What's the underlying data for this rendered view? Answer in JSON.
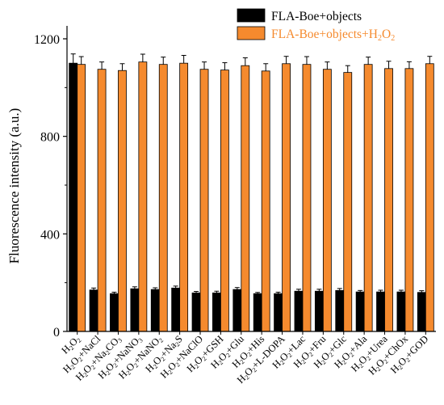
{
  "chart_data": {
    "type": "bar",
    "title": "",
    "ylabel": "Fluorescence intensity (a.u.)",
    "xlabel": "",
    "ylim": [
      0,
      1200
    ],
    "yticks": [
      0,
      400,
      800,
      1200
    ],
    "legend_position": "top-right",
    "grid": false,
    "categories": [
      {
        "text": "H2O2",
        "parts": [
          [
            "H",
            "n"
          ],
          [
            "2",
            "s"
          ],
          [
            "O",
            "n"
          ],
          [
            "2",
            "s"
          ]
        ]
      },
      {
        "text": "H2O2+NaCl",
        "parts": [
          [
            "H",
            "n"
          ],
          [
            "2",
            "s"
          ],
          [
            "O",
            "n"
          ],
          [
            "2",
            "s"
          ],
          [
            "+NaCl",
            "n"
          ]
        ]
      },
      {
        "text": "H2O2+Na2CO3",
        "parts": [
          [
            "H",
            "n"
          ],
          [
            "2",
            "s"
          ],
          [
            "O",
            "n"
          ],
          [
            "2",
            "s"
          ],
          [
            "+Na",
            "n"
          ],
          [
            "2",
            "s"
          ],
          [
            "CO",
            "n"
          ],
          [
            "3",
            "s"
          ]
        ]
      },
      {
        "text": "H2O2+NaNO3",
        "parts": [
          [
            "H",
            "n"
          ],
          [
            "2",
            "s"
          ],
          [
            "O",
            "n"
          ],
          [
            "2",
            "s"
          ],
          [
            "+NaNO",
            "n"
          ],
          [
            "3",
            "s"
          ]
        ]
      },
      {
        "text": "H2O2+NaNO2",
        "parts": [
          [
            "H",
            "n"
          ],
          [
            "2",
            "s"
          ],
          [
            "O",
            "n"
          ],
          [
            "2",
            "s"
          ],
          [
            "+NaNO",
            "n"
          ],
          [
            "2",
            "s"
          ]
        ]
      },
      {
        "text": "H2O2+Na2S",
        "parts": [
          [
            "H",
            "n"
          ],
          [
            "2",
            "s"
          ],
          [
            "O",
            "n"
          ],
          [
            "2",
            "s"
          ],
          [
            "+Na",
            "n"
          ],
          [
            "2",
            "s"
          ],
          [
            "S",
            "n"
          ]
        ]
      },
      {
        "text": "H2O2+NaClO",
        "parts": [
          [
            "H",
            "n"
          ],
          [
            "2",
            "s"
          ],
          [
            "O",
            "n"
          ],
          [
            "2",
            "s"
          ],
          [
            "+NaClO",
            "n"
          ]
        ]
      },
      {
        "text": "H2O2+GSH",
        "parts": [
          [
            "H",
            "n"
          ],
          [
            "2",
            "s"
          ],
          [
            "O",
            "n"
          ],
          [
            "2",
            "s"
          ],
          [
            "+GSH",
            "n"
          ]
        ]
      },
      {
        "text": "H2O2+Glu",
        "parts": [
          [
            "H",
            "n"
          ],
          [
            "2",
            "s"
          ],
          [
            "O",
            "n"
          ],
          [
            "2",
            "s"
          ],
          [
            "+Glu",
            "n"
          ]
        ]
      },
      {
        "text": "H2O2+His",
        "parts": [
          [
            "H",
            "n"
          ],
          [
            "2",
            "s"
          ],
          [
            "O",
            "n"
          ],
          [
            "2",
            "s"
          ],
          [
            "+His",
            "n"
          ]
        ]
      },
      {
        "text": "H2O2+L-DOPA",
        "parts": [
          [
            "H",
            "n"
          ],
          [
            "2",
            "s"
          ],
          [
            "O",
            "n"
          ],
          [
            "2",
            "s"
          ],
          [
            "+L-DOPA",
            "n"
          ]
        ]
      },
      {
        "text": "H2O2+Lac",
        "parts": [
          [
            "H",
            "n"
          ],
          [
            "2",
            "s"
          ],
          [
            "O",
            "n"
          ],
          [
            "2",
            "s"
          ],
          [
            "+Lac",
            "n"
          ]
        ]
      },
      {
        "text": "H2O2+Fru",
        "parts": [
          [
            "H",
            "n"
          ],
          [
            "2",
            "s"
          ],
          [
            "O",
            "n"
          ],
          [
            "2",
            "s"
          ],
          [
            "+Fru",
            "n"
          ]
        ]
      },
      {
        "text": "H2O2+Glc",
        "parts": [
          [
            "H",
            "n"
          ],
          [
            "2",
            "s"
          ],
          [
            "O",
            "n"
          ],
          [
            "2",
            "s"
          ],
          [
            "+Glc",
            "n"
          ]
        ]
      },
      {
        "text": "H2O2+Ala",
        "parts": [
          [
            "H",
            "n"
          ],
          [
            "2",
            "s"
          ],
          [
            "O",
            "n"
          ],
          [
            "2",
            "s"
          ],
          [
            "+Ala",
            "n"
          ]
        ]
      },
      {
        "text": "H2O2+Urea",
        "parts": [
          [
            "H",
            "n"
          ],
          [
            "2",
            "s"
          ],
          [
            "O",
            "n"
          ],
          [
            "2",
            "s"
          ],
          [
            "+Urea",
            "n"
          ]
        ]
      },
      {
        "text": "H2O2+ChOx",
        "parts": [
          [
            "H",
            "n"
          ],
          [
            "2",
            "s"
          ],
          [
            "O",
            "n"
          ],
          [
            "2",
            "s"
          ],
          [
            "+ChOx",
            "n"
          ]
        ]
      },
      {
        "text": "H2O2+GOD",
        "parts": [
          [
            "H",
            "n"
          ],
          [
            "2",
            "s"
          ],
          [
            "O",
            "n"
          ],
          [
            "2",
            "s"
          ],
          [
            "+GOD",
            "n"
          ]
        ]
      }
    ],
    "series": [
      {
        "name": "FLA-Boe+objects",
        "name_parts": [
          [
            "FLA-Boe+objects",
            "n"
          ]
        ],
        "color": "#000000",
        "values": [
          1100,
          170,
          155,
          175,
          172,
          178,
          158,
          158,
          172,
          155,
          155,
          165,
          165,
          168,
          162,
          162,
          162,
          160
        ],
        "errors": [
          38,
          8,
          6,
          8,
          7,
          8,
          6,
          7,
          8,
          5,
          6,
          8,
          8,
          8,
          6,
          7,
          7,
          7
        ]
      },
      {
        "name": "FLA-Boe+objects+H2O2",
        "name_parts": [
          [
            "FLA-Boe+objects+H",
            "n"
          ],
          [
            "2",
            "s"
          ],
          [
            "O",
            "n"
          ],
          [
            "2",
            "s"
          ]
        ],
        "color": "#f58a2e",
        "values": [
          1095,
          1075,
          1070,
          1105,
          1095,
          1100,
          1075,
          1072,
          1090,
          1068,
          1098,
          1095,
          1075,
          1062,
          1095,
          1078,
          1078,
          1098
        ],
        "errors": [
          32,
          30,
          28,
          32,
          30,
          32,
          30,
          30,
          32,
          30,
          30,
          32,
          30,
          28,
          30,
          30,
          28,
          30
        ]
      }
    ]
  }
}
